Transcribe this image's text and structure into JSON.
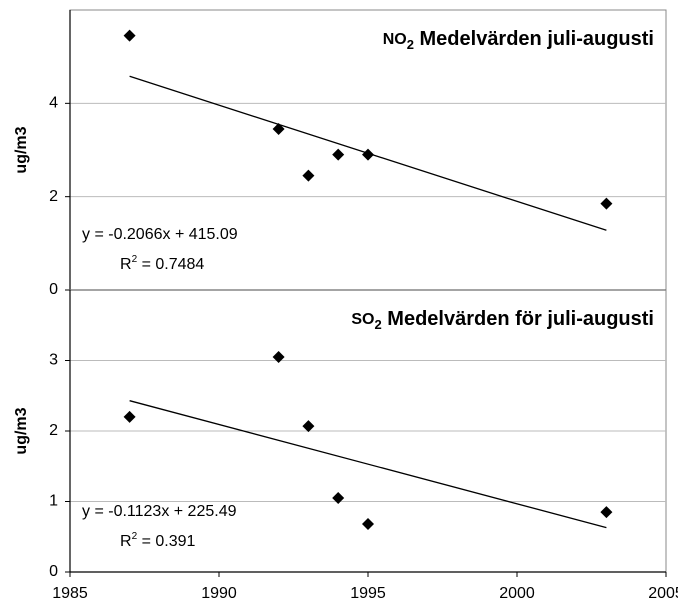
{
  "chart_data": [
    {
      "type": "scatter",
      "title": {
        "main": "NO",
        "sub": "2",
        "rest": " Medelvärden juli-augusti"
      },
      "y_label": "ug/m3",
      "x": [
        1987,
        1992,
        1993,
        1994,
        1995,
        2003
      ],
      "values": [
        5.45,
        3.45,
        2.45,
        2.9,
        2.9,
        1.85
      ],
      "color": "#000000",
      "trendline": {
        "x": [
          1987,
          2003
        ],
        "values": [
          4.58,
          1.28
        ]
      },
      "equation": "y = -0.2066x + 415.09",
      "r2": {
        "main": "R",
        "sup": "2",
        "rest": " = 0.7484"
      },
      "xlim": [
        1985,
        2005
      ],
      "ylim": [
        0,
        6
      ],
      "yticks": [
        0,
        2,
        4
      ],
      "grid": true
    },
    {
      "type": "scatter",
      "title": {
        "main": "SO",
        "sub": "2",
        "rest": " Medelvärden för juli-augusti"
      },
      "y_label": "ug/m3",
      "x": [
        1987,
        1992,
        1993,
        1994,
        1995,
        2003
      ],
      "values": [
        2.2,
        3.05,
        2.07,
        1.05,
        0.68,
        0.85
      ],
      "color": "#000000",
      "trendline": {
        "x": [
          1987,
          2003
        ],
        "values": [
          2.43,
          0.63
        ]
      },
      "equation": "y = -0.1123x + 225.49",
      "r2": {
        "main": "R",
        "sup": "2",
        "rest": " = 0.391"
      },
      "xlim": [
        1985,
        2005
      ],
      "xticks": [
        1985,
        1990,
        1995,
        2000,
        2005
      ],
      "ylim": [
        0,
        4
      ],
      "yticks": [
        0,
        1,
        2,
        3
      ],
      "grid": true
    }
  ]
}
